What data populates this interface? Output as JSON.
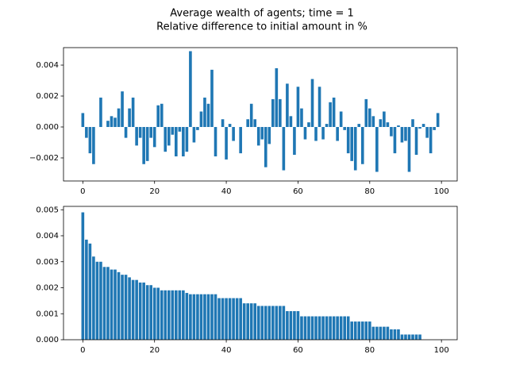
{
  "suptitle": [
    "Average wealth of agents; time = 1",
    "Relative difference to initial amount in %"
  ],
  "chart_data": [
    {
      "type": "bar",
      "color": "#1f77b4",
      "x": [
        0,
        1,
        2,
        3,
        4,
        5,
        6,
        7,
        8,
        9,
        10,
        11,
        12,
        13,
        14,
        15,
        16,
        17,
        18,
        19,
        20,
        21,
        22,
        23,
        24,
        25,
        26,
        27,
        28,
        29,
        30,
        31,
        32,
        33,
        34,
        35,
        36,
        37,
        38,
        39,
        40,
        41,
        42,
        43,
        44,
        45,
        46,
        47,
        48,
        49,
        50,
        51,
        52,
        53,
        54,
        55,
        56,
        57,
        58,
        59,
        60,
        61,
        62,
        63,
        64,
        65,
        66,
        67,
        68,
        69,
        70,
        71,
        72,
        73,
        74,
        75,
        76,
        77,
        78,
        79,
        80,
        81,
        82,
        83,
        84,
        85,
        86,
        87,
        88,
        89,
        90,
        91,
        92,
        93,
        94,
        95,
        96,
        97,
        98,
        99
      ],
      "values": [
        0.0009,
        -0.0007,
        -0.0017,
        -0.0024,
        0,
        0.0019,
        0,
        0.0004,
        0.0007,
        0.0006,
        0.0012,
        0.0023,
        -0.0007,
        0.0012,
        0.0019,
        -0.0012,
        -0.0007,
        -0.0024,
        -0.0022,
        -0.0007,
        -0.0013,
        0.0014,
        0.0015,
        -0.0016,
        -0.0012,
        -0.0005,
        -0.0019,
        -0.0003,
        -0.0019,
        -0.0016,
        0.0049,
        -0.001,
        -0.0002,
        0.001,
        0.0019,
        0.0015,
        0.0037,
        -0.0019,
        0,
        0.0005,
        -0.0021,
        0.0002,
        -0.0009,
        0,
        -0.0017,
        0,
        0.0005,
        0.0015,
        0.0005,
        -0.0012,
        -0.0008,
        -0.0026,
        -0.0011,
        0.0018,
        0.0038,
        0.0018,
        -0.0028,
        0.0028,
        0.0007,
        -0.0018,
        0.0026,
        0.0012,
        -0.0008,
        0.0003,
        0.0031,
        -0.0009,
        0.0026,
        -0.0008,
        0.0002,
        0.0016,
        0.0019,
        -0.0009,
        0.001,
        -0.0002,
        -0.0017,
        -0.0022,
        -0.0028,
        0.0002,
        -0.0024,
        0.0018,
        0.0012,
        0.0007,
        -0.0029,
        0.0005,
        0.001,
        0.0003,
        -0.0006,
        -0.0017,
        0.0001,
        -0.001,
        -0.0009,
        -0.0029,
        0.0005,
        -0.0018,
        -0.0001,
        0.0002,
        -0.0007,
        -0.0017,
        -0.0002,
        0.0009
      ],
      "xlim": [
        -5.39,
        104.39
      ],
      "xticks": [
        0,
        20,
        40,
        60,
        80,
        100
      ],
      "ylim": [
        -0.00349,
        0.00513
      ],
      "yticks": [
        {
          "value": -0.002,
          "label": "−0.002"
        },
        {
          "value": 0,
          "label": "0.000"
        },
        {
          "value": 0.002,
          "label": "0.002"
        },
        {
          "value": 0.004,
          "label": "0.004"
        }
      ]
    },
    {
      "type": "bar",
      "color": "#1f77b4",
      "x": [
        0,
        1,
        2,
        3,
        4,
        5,
        6,
        7,
        8,
        9,
        10,
        11,
        12,
        13,
        14,
        15,
        16,
        17,
        18,
        19,
        20,
        21,
        22,
        23,
        24,
        25,
        26,
        27,
        28,
        29,
        30,
        31,
        32,
        33,
        34,
        35,
        36,
        37,
        38,
        39,
        40,
        41,
        42,
        43,
        44,
        45,
        46,
        47,
        48,
        49,
        50,
        51,
        52,
        53,
        54,
        55,
        56,
        57,
        58,
        59,
        60,
        61,
        62,
        63,
        64,
        65,
        66,
        67,
        68,
        69,
        70,
        71,
        72,
        73,
        74,
        75,
        76,
        77,
        78,
        79,
        80,
        81,
        82,
        83,
        84,
        85,
        86,
        87,
        88,
        89,
        90,
        91,
        92,
        93,
        94,
        95,
        96,
        97,
        98,
        99
      ],
      "values": [
        0.0049,
        0.00385,
        0.0037,
        0.0032,
        0.003,
        0.003,
        0.0028,
        0.0028,
        0.0027,
        0.0027,
        0.0026,
        0.0025,
        0.0025,
        0.0024,
        0.0023,
        0.0023,
        0.0022,
        0.0022,
        0.0021,
        0.0021,
        0.002,
        0.002,
        0.0019,
        0.0019,
        0.0019,
        0.0019,
        0.0019,
        0.0019,
        0.0019,
        0.0018,
        0.00175,
        0.00175,
        0.00175,
        0.00175,
        0.00175,
        0.00175,
        0.00175,
        0.00175,
        0.0016,
        0.0016,
        0.0016,
        0.0016,
        0.0016,
        0.0016,
        0.0016,
        0.0014,
        0.0014,
        0.0014,
        0.0014,
        0.0013,
        0.0013,
        0.0013,
        0.0013,
        0.0013,
        0.0013,
        0.0013,
        0.0013,
        0.0011,
        0.0011,
        0.0011,
        0.0011,
        0.0009,
        0.0009,
        0.0009,
        0.0009,
        0.0009,
        0.0009,
        0.0009,
        0.0009,
        0.0009,
        0.0009,
        0.0009,
        0.0009,
        0.0009,
        0.0009,
        0.0007,
        0.0007,
        0.0007,
        0.0007,
        0.0007,
        0.0007,
        0.0005,
        0.0005,
        0.0005,
        0.0005,
        0.0005,
        0.0004,
        0.0004,
        0.0004,
        0.0002,
        0.0002,
        0.0002,
        0.0002,
        0.0002,
        0.0002,
        0,
        0,
        0,
        0,
        0
      ],
      "xlim": [
        -5.39,
        104.39
      ],
      "xticks": [
        0,
        20,
        40,
        60,
        80,
        100
      ],
      "ylim": [
        0,
        0.00513
      ],
      "yticks": [
        {
          "value": 0,
          "label": "0.000"
        },
        {
          "value": 0.001,
          "label": "0.001"
        },
        {
          "value": 0.002,
          "label": "0.002"
        },
        {
          "value": 0.003,
          "label": "0.003"
        },
        {
          "value": 0.004,
          "label": "0.004"
        },
        {
          "value": 0.005,
          "label": "0.005"
        }
      ]
    }
  ]
}
